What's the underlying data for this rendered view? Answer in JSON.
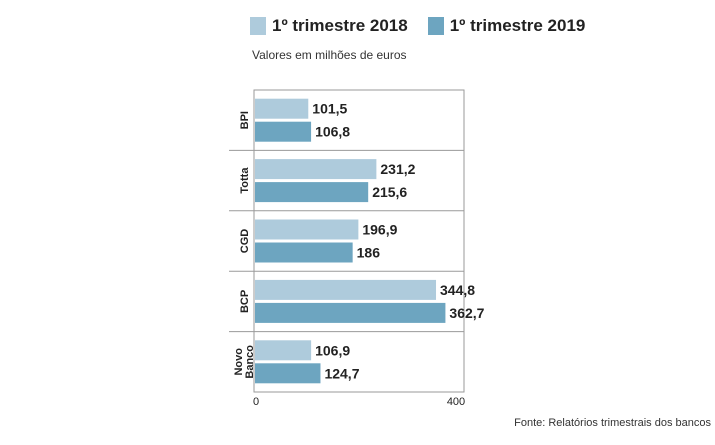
{
  "chart_data": {
    "type": "bar",
    "orientation": "horizontal",
    "subtitle": "Valores em milhões de euros",
    "source": "Fonte: Relatórios trimestrais dos bancos",
    "categories": [
      "BPI",
      "Totta",
      "CGD",
      "BCP",
      "Novo Banco"
    ],
    "series": [
      {
        "name": "1º trimestre 2018",
        "color": "#aecbdc",
        "values": [
          101.5,
          231.2,
          196.9,
          344.8,
          106.9
        ],
        "labels": [
          "101,5",
          "231,2",
          "196,9",
          "344,8",
          "106,9"
        ]
      },
      {
        "name": "1º trimestre 2019",
        "color": "#6da5c0",
        "values": [
          106.8,
          215.6,
          186,
          362.7,
          124.7
        ],
        "labels": [
          "106,8",
          "215,6",
          "186",
          "362,7",
          "124,7"
        ]
      }
    ],
    "xlim": [
      0,
      400
    ],
    "xticks": [
      "0",
      "400"
    ],
    "legend_position": "top",
    "grid": false
  }
}
